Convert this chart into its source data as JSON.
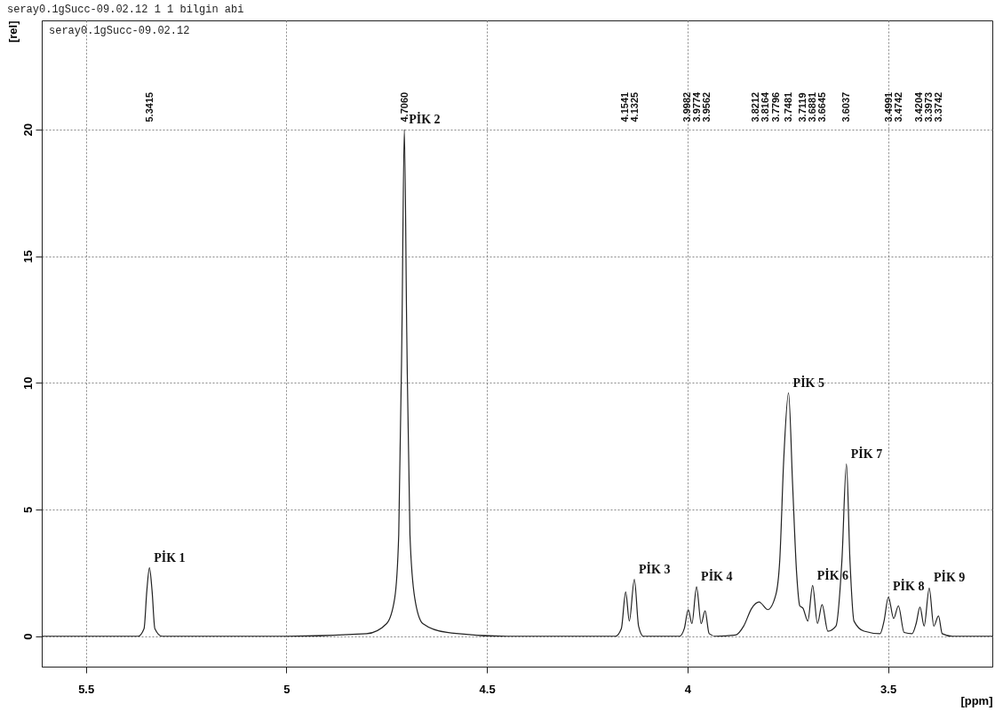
{
  "chart_data": {
    "type": "line",
    "title": "seray0.1gSucc-09.02.12  1  1  bilgin abi",
    "xlabel": "[ppm]",
    "ylabel": "[rel]",
    "x": [
      5.61,
      5.37,
      5.355,
      5.348,
      5.3415,
      5.335,
      5.328,
      5.31,
      5.0,
      4.8,
      4.75,
      4.73,
      4.72,
      4.712,
      4.706,
      4.7,
      4.692,
      4.68,
      4.66,
      4.6,
      4.45,
      4.18,
      4.165,
      4.1541,
      4.145,
      4.1325,
      4.122,
      4.11,
      4.02,
      4.008,
      3.9982,
      3.989,
      3.9774,
      3.966,
      3.9562,
      3.946,
      3.93,
      3.88,
      3.86,
      3.84,
      3.8212,
      3.8164,
      3.8,
      3.7796,
      3.77,
      3.76,
      3.7481,
      3.738,
      3.728,
      3.72,
      3.7119,
      3.7,
      3.6881,
      3.676,
      3.6645,
      3.65,
      3.63,
      3.615,
      3.6037,
      3.595,
      3.585,
      3.56,
      3.52,
      3.51,
      3.4991,
      3.486,
      3.4742,
      3.46,
      3.44,
      3.43,
      3.4204,
      3.41,
      3.3973,
      3.386,
      3.3742,
      3.365,
      3.34,
      3.24
    ],
    "series": [
      {
        "color": "#222222",
        "values": [
          0,
          0,
          0.3,
          1.8,
          2.7,
          1.8,
          0.3,
          0,
          0,
          0.1,
          0.5,
          1.5,
          4,
          12,
          20,
          12,
          4,
          1.5,
          0.5,
          0.15,
          0,
          0,
          0.3,
          1.75,
          0.6,
          2.25,
          0.4,
          0,
          0,
          0.3,
          1.05,
          0.5,
          1.95,
          0.5,
          1.0,
          0.1,
          0,
          0.05,
          0.4,
          1.1,
          1.35,
          1.3,
          1.05,
          1.65,
          3,
          7,
          9.6,
          6,
          2.5,
          1.2,
          1.1,
          0.6,
          2.0,
          0.5,
          1.25,
          0.2,
          0.4,
          3,
          6.8,
          3,
          0.6,
          0.2,
          0.1,
          0.6,
          1.55,
          0.7,
          1.2,
          0.15,
          0.1,
          0.5,
          1.15,
          0.4,
          1.9,
          0.4,
          0.8,
          0.1,
          0,
          0
        ]
      }
    ],
    "xlim": [
      5.61,
      3.24
    ],
    "xticks": [
      5.5,
      5.0,
      4.5,
      4.0,
      3.5
    ],
    "ylim": [
      -1.2,
      24.3
    ],
    "yticks": [
      0,
      5,
      10,
      15,
      20
    ],
    "grid": true,
    "line_style": "solid",
    "x2lim": [
      5.61,
      3.24
    ],
    "x2ticks": [
      {
        "value": 5.3415,
        "label": "5.3415"
      },
      {
        "value": 4.706,
        "label": "4.7060"
      },
      {
        "value": 4.1541,
        "label": "4.1541"
      },
      {
        "value": 4.1325,
        "label": "4.1325"
      },
      {
        "value": 3.9982,
        "label": "3.9982"
      },
      {
        "value": 3.9774,
        "label": "3.9774"
      },
      {
        "value": 3.9562,
        "label": "3.9562"
      },
      {
        "value": 3.8212,
        "label": "3.8212"
      },
      {
        "value": 3.8164,
        "label": "3.8164"
      },
      {
        "value": 3.7796,
        "label": "3.7796"
      },
      {
        "value": 3.7481,
        "label": "3.7481"
      },
      {
        "value": 3.7119,
        "label": "3.7119"
      },
      {
        "value": 3.6881,
        "label": "3.6881"
      },
      {
        "value": 3.6645,
        "label": "3.6645"
      },
      {
        "value": 3.6037,
        "label": "3.6037"
      },
      {
        "value": 3.4991,
        "label": "3.4991"
      },
      {
        "value": 3.4742,
        "label": "3.4742"
      },
      {
        "value": 3.4204,
        "label": "3.4204"
      },
      {
        "value": 3.3973,
        "label": "3.3973"
      },
      {
        "value": 3.3742,
        "label": "3.3742"
      }
    ],
    "annotations": [
      "seray0.1gSucc-09.02.12",
      {
        "text": "PİK 1",
        "x": 5.3415,
        "y": 2.7
      },
      {
        "text": "PİK 2",
        "x": 4.706,
        "y": 20
      },
      {
        "text": "PİK 3",
        "x": 4.1325,
        "y": 2.25
      },
      {
        "text": "PİK 4",
        "x": 3.9774,
        "y": 1.95
      },
      {
        "text": "PİK 5",
        "x": 3.7481,
        "y": 9.6
      },
      {
        "text": "PİK 6",
        "x": 3.6881,
        "y": 2.0
      },
      {
        "text": "PİK 7",
        "x": 3.6037,
        "y": 6.8
      },
      {
        "text": "PİK 8",
        "x": 3.4991,
        "y": 1.55
      },
      {
        "text": "PİK 9",
        "x": 3.3973,
        "y": 1.9
      }
    ]
  }
}
